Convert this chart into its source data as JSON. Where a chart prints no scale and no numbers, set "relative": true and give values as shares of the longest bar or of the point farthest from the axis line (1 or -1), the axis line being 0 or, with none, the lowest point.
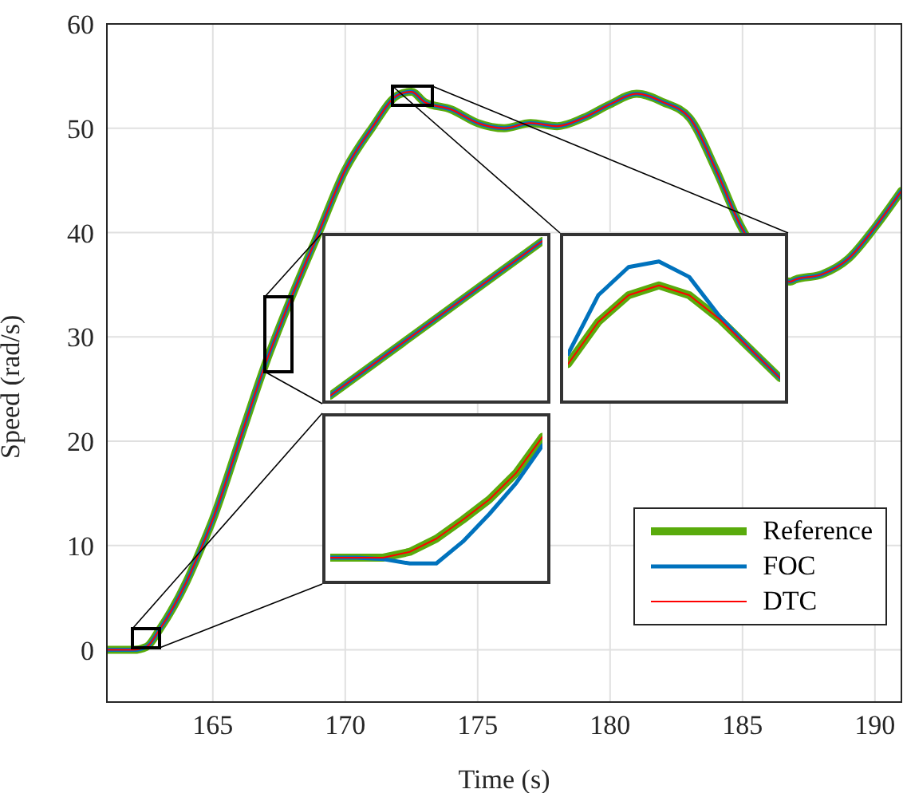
{
  "chart_data": [
    {
      "type": "line",
      "xlabel": "Time (s)",
      "ylabel": "Speed (rad/s)",
      "xlim": [
        161,
        191
      ],
      "ylim": [
        -5,
        60
      ],
      "xticks": [
        165,
        170,
        175,
        180,
        185,
        190
      ],
      "yticks": [
        0,
        10,
        20,
        30,
        40,
        50,
        60
      ],
      "grid": true,
      "legend": "bottom right",
      "x": [
        161,
        162,
        162.5,
        163,
        164,
        164.6,
        165,
        166,
        167,
        168,
        169,
        170,
        171,
        172,
        172.5,
        173,
        174,
        175,
        176,
        177,
        178,
        179,
        180,
        181,
        182,
        183,
        184,
        184.9,
        186.8,
        187,
        188,
        189,
        190,
        191
      ],
      "series": [
        {
          "name": "Reference",
          "color": "#59ab0c",
          "values": [
            0,
            0,
            0.3,
            2,
            6.5,
            10,
            12.5,
            20,
            27.5,
            34,
            40,
            46,
            50,
            53.2,
            53.5,
            52.5,
            51.8,
            50.5,
            50,
            50.5,
            50.2,
            51,
            52.3,
            53.3,
            52.5,
            51,
            46,
            40.8,
            35.3,
            35.5,
            36,
            37.5,
            40.5,
            44
          ]
        },
        {
          "name": "FOC",
          "color": "#0072bd",
          "values": [
            0,
            0,
            0.3,
            2,
            6.5,
            10,
            12.5,
            20,
            27.5,
            34,
            40,
            46,
            50,
            53.2,
            53.5,
            52.5,
            51.8,
            50.5,
            50,
            50.5,
            50.2,
            51,
            52.3,
            53.3,
            52.5,
            51,
            46,
            40.8,
            35.3,
            35.5,
            36,
            37.5,
            40.5,
            44
          ]
        },
        {
          "name": "DTC",
          "color": "#ff0000",
          "values": [
            0,
            0,
            0.3,
            2,
            6.5,
            10,
            12.5,
            20,
            27.5,
            34,
            40,
            46,
            50,
            53.2,
            53.5,
            52.5,
            51.8,
            50.5,
            50,
            50.5,
            50.2,
            51,
            52.3,
            53.3,
            52.5,
            51,
            46,
            40.8,
            35.3,
            35.5,
            36,
            37.5,
            40.5,
            44
          ]
        }
      ]
    },
    {
      "type": "line",
      "relative": true,
      "categories": [
        null,
        null,
        null
      ],
      "series": [
        {
          "color": "#59ab0c",
          "values": [
            0.04,
            0.52,
            1
          ]
        },
        {
          "color": "#0072bd",
          "values": [
            0.04,
            0.52,
            1
          ]
        },
        {
          "color": "#ff0000",
          "values": [
            0.04,
            0.52,
            1
          ]
        }
      ]
    },
    {
      "type": "line",
      "relative": true,
      "categories": [
        null,
        null,
        null,
        null,
        null,
        null,
        null,
        null
      ],
      "series": [
        {
          "color": "#59ab0c",
          "values": [
            0.27,
            0.57,
            0.76,
            0.83,
            0.76,
            0.59,
            0.38,
            0.17
          ]
        },
        {
          "color": "#0072bd",
          "values": [
            0.34,
            0.76,
            0.96,
            1,
            0.89,
            0.61,
            0.38,
            0.17
          ]
        },
        {
          "color": "#ff0000",
          "values": [
            0.27,
            0.57,
            0.76,
            0.83,
            0.76,
            0.59,
            0.38,
            0.17
          ]
        }
      ]
    },
    {
      "type": "line",
      "relative": true,
      "categories": [
        null,
        null,
        null,
        null,
        null,
        null,
        null,
        null,
        null
      ],
      "series": [
        {
          "color": "#59ab0c",
          "values": [
            0.17,
            0.17,
            0.17,
            0.21,
            0.3,
            0.43,
            0.57,
            0.75,
            1
          ]
        },
        {
          "color": "#0072bd",
          "values": [
            0.17,
            0.17,
            0.16,
            0.13,
            0.13,
            0.28,
            0.47,
            0.68,
            0.94
          ]
        },
        {
          "color": "#ff0000",
          "values": [
            0.17,
            0.17,
            0.17,
            0.21,
            0.3,
            0.43,
            0.57,
            0.75,
            1
          ]
        }
      ]
    }
  ]
}
